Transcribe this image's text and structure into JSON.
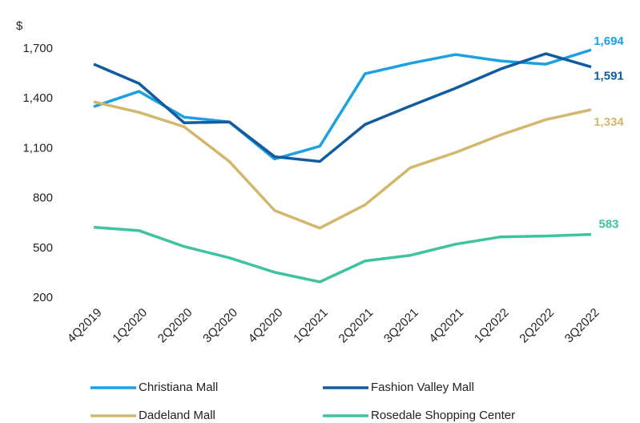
{
  "chart_data": {
    "type": "line",
    "y_label": "$",
    "categories": [
      "4Q2019",
      "1Q2020",
      "2Q2020",
      "3Q2020",
      "4Q2020",
      "1Q2021",
      "2Q2021",
      "3Q2021",
      "4Q2021",
      "1Q2022",
      "2Q2022",
      "3Q2022"
    ],
    "series": [
      {
        "name": "Christiana Mall",
        "color": "#1ba1e2",
        "values": [
          1352,
          1444,
          1289,
          1260,
          1037,
          1114,
          1550,
          1613,
          1666,
          1627,
          1608,
          1694
        ],
        "value_labels": [
          null,
          null,
          null,
          null,
          null,
          null,
          null,
          null,
          null,
          null,
          null,
          "1,694"
        ]
      },
      {
        "name": "Fashion Valley Mall",
        "color": "#115b9e",
        "values": [
          1608,
          1492,
          1255,
          1260,
          1051,
          1022,
          1245,
          1356,
          1463,
          1579,
          1671,
          1591
        ],
        "value_labels": [
          null,
          null,
          null,
          null,
          null,
          null,
          null,
          null,
          null,
          null,
          null,
          "1,591"
        ]
      },
      {
        "name": "Dadeland Mall",
        "color": "#d2b86c",
        "values": [
          1381,
          1318,
          1231,
          1022,
          727,
          621,
          761,
          984,
          1076,
          1182,
          1274,
          1334
        ],
        "value_labels": [
          null,
          null,
          null,
          null,
          null,
          null,
          null,
          null,
          null,
          null,
          null,
          "1,334"
        ]
      },
      {
        "name": "Rosedale Shopping Center",
        "color": "#3ec3a0",
        "values": [
          626,
          606,
          510,
          442,
          355,
          297,
          423,
          457,
          524,
          568,
          573,
          583
        ],
        "value_labels": [
          null,
          null,
          null,
          null,
          null,
          null,
          null,
          null,
          null,
          null,
          null,
          "583"
        ]
      }
    ],
    "ylim": [
      200,
      1700
    ],
    "yticks": [
      200,
      500,
      800,
      {
        "value": 1100,
        "label": "1,100"
      },
      {
        "value": 1400,
        "label": "1,400"
      },
      {
        "value": 1700,
        "label": "1,700"
      }
    ],
    "grid": false
  }
}
